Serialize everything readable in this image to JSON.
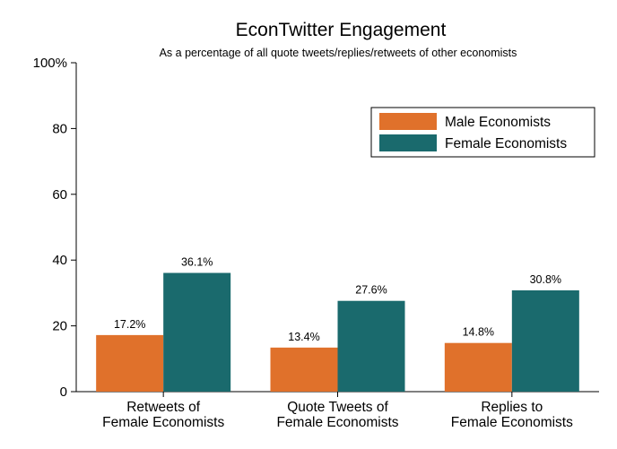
{
  "chart_data": {
    "type": "bar",
    "title": "EconTwitter Engagement",
    "subtitle": "As a percentage of all quote tweets/replies/retweets of other economists",
    "categories": [
      [
        "Retweets of",
        "Female Economists"
      ],
      [
        "Quote Tweets of",
        "Female Economists"
      ],
      [
        "Replies to",
        "Female Economists"
      ]
    ],
    "series": [
      {
        "name": "Male Economists",
        "color": "#e0712b",
        "values": [
          17.2,
          13.4,
          14.8
        ],
        "labels": [
          "17.2%",
          "13.4%",
          "14.8%"
        ]
      },
      {
        "name": "Female Economists",
        "color": "#1a6a6d",
        "values": [
          36.1,
          27.6,
          30.8
        ],
        "labels": [
          "36.1%",
          "27.6%",
          "30.8%"
        ]
      }
    ],
    "ylim": [
      0,
      100
    ],
    "yticks": [
      0,
      20,
      40,
      60,
      80,
      100
    ],
    "ytick_labels": [
      "0",
      "20",
      "40",
      "60",
      "80",
      "100%"
    ],
    "xlabel": "",
    "ylabel": "",
    "grid": false,
    "legend": "top-right"
  }
}
